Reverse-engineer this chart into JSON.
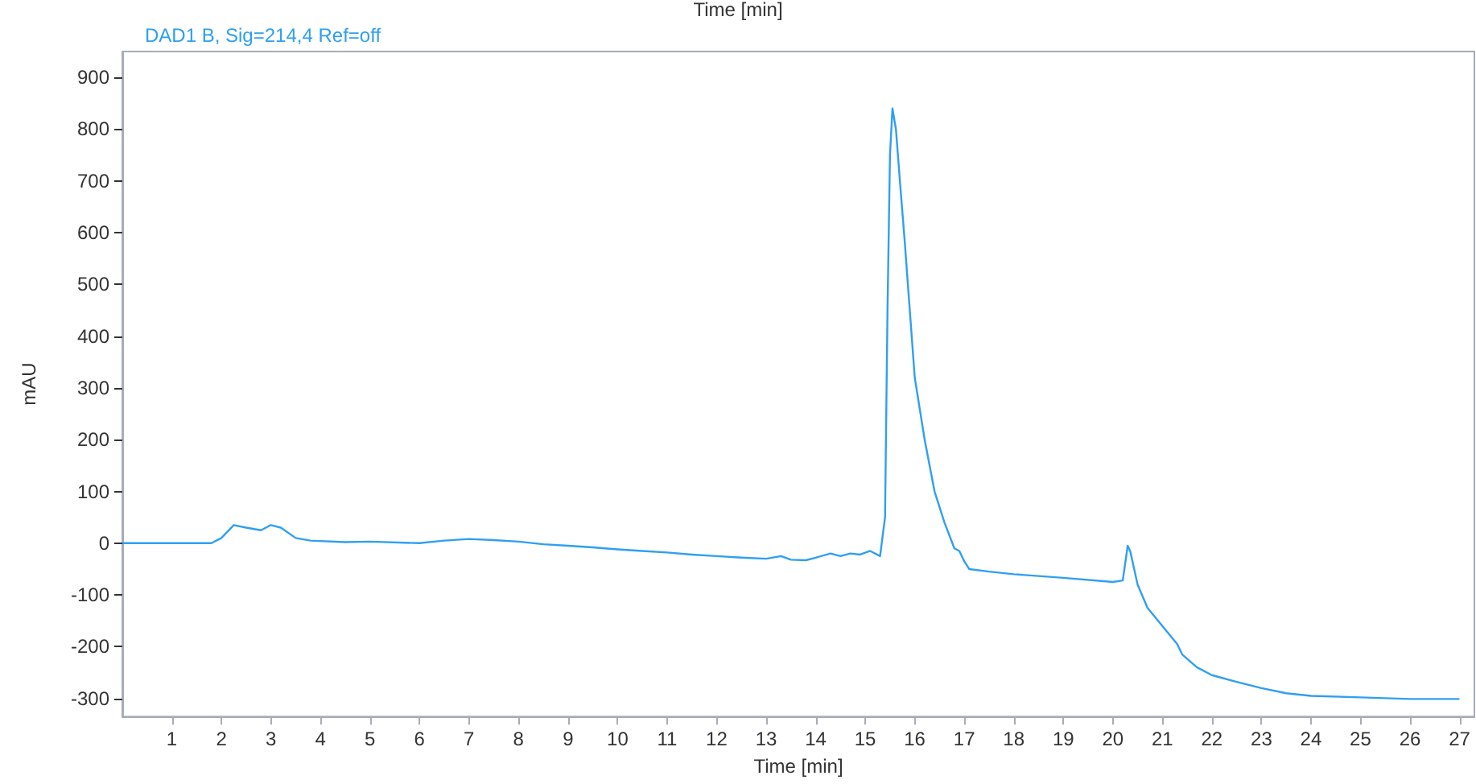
{
  "chart_data": {
    "type": "line",
    "title": "DAD1 B, Sig=214,4 Ref=off",
    "xlabel": "Time [min]",
    "ylabel": "mAU",
    "annotations": [
      "Time [min]"
    ],
    "xlim": [
      0,
      27.3
    ],
    "xticks": [
      1,
      2,
      3,
      4,
      5,
      6,
      7,
      8,
      9,
      10,
      11,
      12,
      13,
      14,
      15,
      16,
      17,
      18,
      19,
      20,
      21,
      22,
      23,
      24,
      25,
      26,
      27
    ],
    "ylim": [
      -335,
      950
    ],
    "yticks": [
      -300,
      -200,
      -100,
      0,
      100,
      200,
      300,
      400,
      500,
      600,
      700,
      800,
      900
    ],
    "grid": false,
    "marker": "none",
    "line_style": "solid",
    "series": [
      {
        "color": "#2f9ff2",
        "x": [
          0,
          1.8,
          2.0,
          2.25,
          2.5,
          2.8,
          3.0,
          3.2,
          3.5,
          3.8,
          4.5,
          5.0,
          6,
          6.5,
          7.0,
          7.5,
          8,
          8.5,
          9,
          9.5,
          10,
          10.5,
          11,
          11.5,
          12,
          12.5,
          13,
          13.3,
          13.5,
          13.8,
          14.0,
          14.3,
          14.5,
          14.7,
          14.9,
          15.1,
          15.3,
          15.4,
          15.45,
          15.5,
          15.55,
          15.62,
          15.7,
          15.8,
          15.9,
          16.0,
          16.2,
          16.4,
          16.6,
          16.8,
          16.9,
          17.0,
          17.1,
          17.5,
          18,
          19,
          20,
          20.2,
          20.3,
          20.35,
          20.5,
          20.7,
          21.0,
          21.3,
          21.4,
          21.7,
          22,
          22.5,
          23,
          23.5,
          24,
          25,
          26,
          27
        ],
        "values": [
          0,
          0,
          10,
          35,
          30,
          25,
          35,
          30,
          10,
          5,
          2,
          3,
          0,
          5,
          8,
          6,
          3,
          -2,
          -5,
          -8,
          -12,
          -15,
          -18,
          -22,
          -25,
          -28,
          -30,
          -25,
          -32,
          -33,
          -28,
          -20,
          -25,
          -20,
          -22,
          -15,
          -25,
          50,
          450,
          750,
          840,
          800,
          700,
          580,
          450,
          320,
          200,
          100,
          40,
          -10,
          -15,
          -35,
          -50,
          -55,
          -60,
          -67,
          -75,
          -72,
          -5,
          -15,
          -80,
          -125,
          -160,
          -195,
          -215,
          -240,
          -255,
          -268,
          -280,
          -290,
          -295,
          -298,
          -301,
          -301
        ]
      }
    ]
  }
}
